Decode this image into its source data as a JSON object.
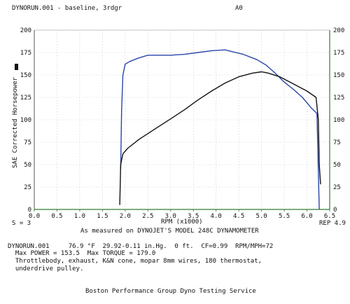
{
  "header": {
    "file_label": "DYNORUN.001 - baseline, 3rdgr",
    "run_code": "A0"
  },
  "footer": {
    "s_label": "S = 3",
    "rep_label": "REP 4.9",
    "measured_note": "As measured on DYNOJET'S MODEL 248C DYNAMOMETER",
    "info_line1": "DYNORUN.001     76.9 °F  29.92-0.11 in.Hg.  0 ft.  CF=0.99  RPM/MPH=72",
    "info_line2": "  Max POWER = 153.5  Max TORQUE = 179.0",
    "info_line3": "  Throttlebody, exhaust, K&N cone, mopar 8mm wires, 180 thermostat,",
    "info_line4": "  underdrive pulley.",
    "service": "Boston Performance Group Dyno Testing Service"
  },
  "chart_data": {
    "type": "line",
    "xlabel": "RPM (x1000)",
    "ylabel": "SAE Corrected Horsepower",
    "xlim": [
      0,
      6.5
    ],
    "ylim": [
      0,
      200
    ],
    "x_ticks": [
      "0.0",
      "0.5",
      "1.0",
      "1.5",
      "2.0",
      "2.5",
      "3.0",
      "3.5",
      "4.0",
      "4.5",
      "5.0",
      "5.5",
      "6.0",
      "6.5"
    ],
    "y_ticks_left": [
      "0",
      "25",
      "50",
      "75",
      "100",
      "125",
      "150",
      "175",
      "200"
    ],
    "y_ticks_right": [
      "0",
      "25",
      "50",
      "75",
      "100",
      "125",
      "150",
      "175",
      "200"
    ],
    "grid": true,
    "series": [
      {
        "key": "torque",
        "color": "#2a46a8",
        "x": [
          1.9,
          1.92,
          1.95,
          2.0,
          2.1,
          2.3,
          2.5,
          2.8,
          3.0,
          3.3,
          3.6,
          3.9,
          4.2,
          4.35,
          4.6,
          4.9,
          5.1,
          5.3,
          5.5,
          5.7,
          5.9,
          6.1,
          6.22,
          6.27
        ],
        "y": [
          45,
          110,
          150,
          162,
          165,
          169,
          172,
          172,
          172,
          173,
          175,
          177,
          178,
          176,
          173,
          167,
          161,
          152,
          142,
          134,
          125,
          113,
          107,
          0
        ]
      },
      {
        "key": "power",
        "color": "#111111",
        "x": [
          1.88,
          1.9,
          1.95,
          2.05,
          2.3,
          2.6,
          3.0,
          3.3,
          3.6,
          3.9,
          4.2,
          4.5,
          4.8,
          5.0,
          5.15,
          5.4,
          5.7,
          6.0,
          6.2,
          6.25,
          6.27,
          6.3
        ],
        "y": [
          5,
          50,
          62,
          68,
          78,
          88,
          101,
          111,
          122,
          132,
          141,
          148,
          152,
          153.5,
          152,
          148,
          140,
          132,
          125,
          100,
          50,
          28
        ]
      }
    ]
  }
}
